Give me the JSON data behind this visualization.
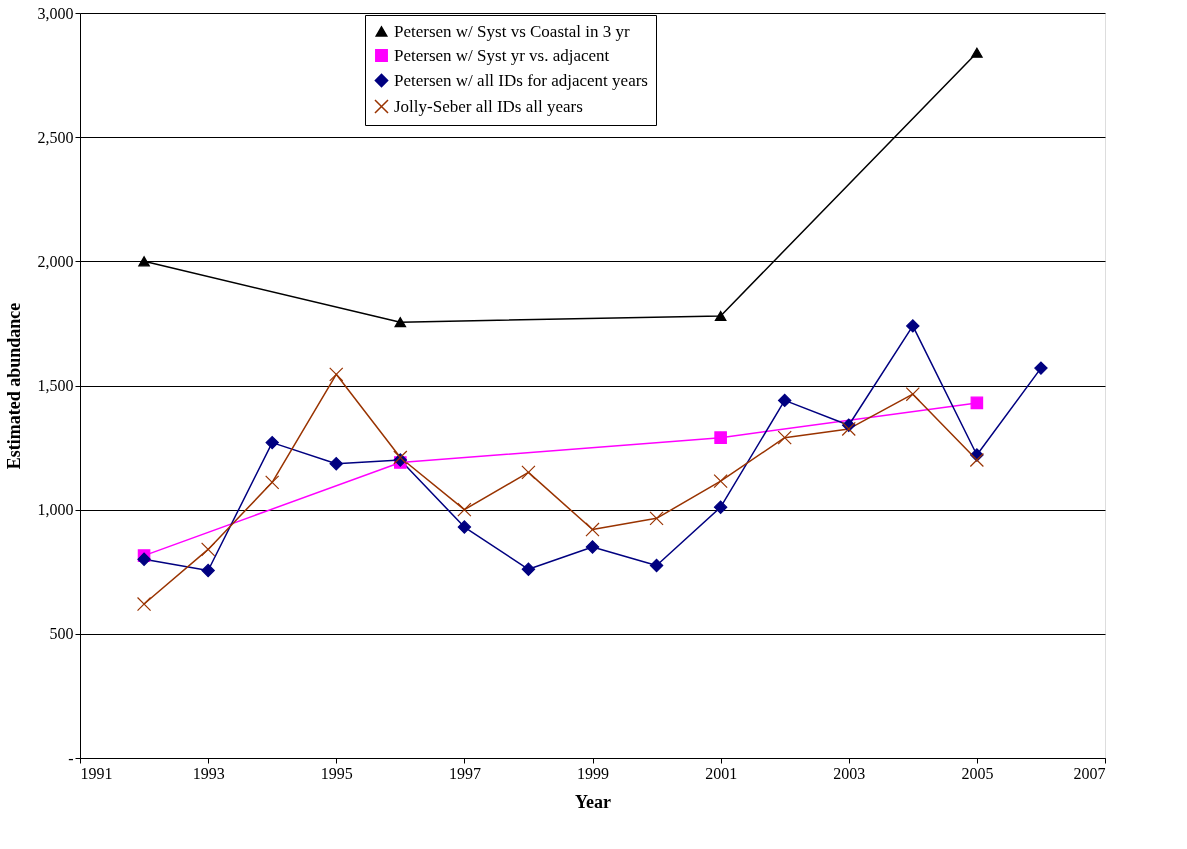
{
  "chart_data": {
    "type": "line",
    "xlabel": "Year",
    "ylabel": "Estimated abundance",
    "xlim": [
      1991,
      2007
    ],
    "xticks": [
      1991,
      1993,
      1995,
      1997,
      1999,
      2001,
      2003,
      2005,
      2007
    ],
    "ylim": [
      0,
      3000
    ],
    "yticks": [
      {
        "value": 0,
        "label": "-"
      },
      {
        "value": 500,
        "label": "500"
      },
      {
        "value": 1000,
        "label": "1,000"
      },
      {
        "value": 1500,
        "label": "1,500"
      },
      {
        "value": 2000,
        "label": "2,000"
      },
      {
        "value": 2500,
        "label": "2,500"
      },
      {
        "value": 3000,
        "label": "3,000"
      }
    ],
    "grid": "y",
    "legend": "top",
    "line_style": "solid",
    "series": [
      {
        "name": "Petersen w/ Syst vs Coastal in 3 yr",
        "color": "#000000",
        "marker": "triangle",
        "x": [
          1992,
          1996,
          2001,
          2005
        ],
        "values": [
          2000,
          1755,
          1780,
          2840
        ]
      },
      {
        "name": "Petersen w/ Syst yr vs. adjacent",
        "color": "#ff00ff",
        "marker": "square",
        "x": [
          1992,
          1996,
          2001,
          2005
        ],
        "values": [
          815,
          1190,
          1290,
          1430
        ]
      },
      {
        "name": "Petersen w/ all IDs for adjacent years",
        "color": "#000080",
        "marker": "diamond",
        "x": [
          1992,
          1993,
          1994,
          1995,
          1996,
          1997,
          1998,
          1999,
          2000,
          2001,
          2002,
          2003,
          2004,
          2005,
          2006
        ],
        "values": [
          800,
          755,
          1270,
          1185,
          1200,
          930,
          760,
          850,
          775,
          1010,
          1440,
          1340,
          1740,
          1220,
          1570
        ]
      },
      {
        "name": "Jolly-Seber all IDs all years",
        "color": "#993300",
        "marker": "cross",
        "x": [
          1992,
          1993,
          1994,
          1995,
          1996,
          1997,
          1998,
          1999,
          2000,
          2001,
          2002,
          2003,
          2004,
          2005
        ],
        "values": [
          620,
          840,
          1110,
          1545,
          1210,
          1000,
          1150,
          920,
          965,
          1115,
          1290,
          1325,
          1465,
          1200
        ]
      }
    ]
  }
}
